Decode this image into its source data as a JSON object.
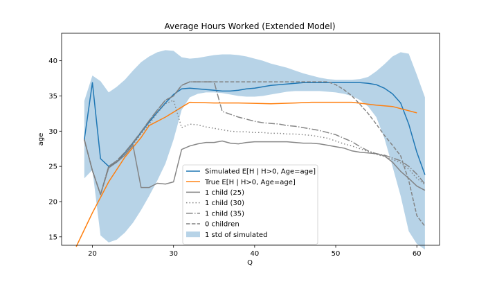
{
  "chart_data": {
    "type": "line",
    "title": "Average Hours Worked (Extended Model)",
    "xlabel": "Q",
    "ylabel": "age",
    "xlim": [
      16.2,
      62.8
    ],
    "ylim": [
      13.8,
      43.9
    ],
    "xticks": [
      20,
      30,
      40,
      50,
      60
    ],
    "yticks": [
      15,
      20,
      25,
      30,
      35,
      40
    ],
    "grid": false,
    "legend_position": "lower-center",
    "band": {
      "name": "1 std of simulated",
      "color": "#1f77b4",
      "opacity": 0.32,
      "x": [
        19,
        20,
        21,
        22,
        23,
        24,
        25,
        26,
        27,
        28,
        29,
        30,
        31,
        32,
        33,
        34,
        35,
        36,
        37,
        38,
        39,
        40,
        41,
        42,
        43,
        44,
        45,
        46,
        47,
        48,
        49,
        50,
        51,
        52,
        53,
        54,
        55,
        56,
        57,
        58,
        59,
        60,
        61
      ],
      "upper": [
        34.3,
        37.9,
        37.1,
        35.5,
        36.3,
        37.3,
        38.6,
        39.8,
        40.6,
        41.2,
        41.5,
        41.4,
        40.5,
        40.3,
        40.4,
        40.6,
        40.8,
        40.9,
        40.9,
        40.8,
        40.6,
        40.3,
        40.0,
        39.6,
        39.3,
        39.0,
        38.6,
        38.2,
        37.9,
        37.6,
        37.4,
        37.3,
        37.3,
        37.3,
        37.4,
        37.7,
        38.5,
        39.5,
        40.6,
        41.2,
        41.0,
        38.0,
        34.8
      ],
      "lower": [
        23.3,
        24.5,
        15.2,
        14.2,
        14.6,
        15.6,
        17.0,
        18.8,
        20.8,
        23.0,
        25.4,
        28.8,
        33.0,
        34.8,
        35.3,
        35.5,
        35.5,
        35.4,
        35.2,
        35.0,
        34.9,
        34.9,
        35.0,
        35.2,
        35.4,
        35.6,
        35.7,
        35.7,
        35.7,
        35.7,
        35.6,
        35.5,
        35.3,
        35.0,
        34.4,
        33.5,
        32.0,
        29.0,
        25.0,
        20.8,
        15.8,
        14.0,
        13.2
      ]
    },
    "series": [
      {
        "name": "Simulated E[H | H>0, Age=age]",
        "color": "#1f77b4",
        "style": "solid",
        "width": 1.5,
        "x": [
          19,
          20,
          21,
          22,
          23,
          24,
          25,
          26,
          27,
          28,
          29,
          30,
          31,
          32,
          33,
          34,
          35,
          36,
          37,
          38,
          39,
          40,
          41,
          42,
          43,
          44,
          45,
          46,
          47,
          48,
          49,
          50,
          51,
          52,
          53,
          54,
          55,
          56,
          57,
          58,
          59,
          60,
          61
        ],
        "y": [
          28.8,
          36.9,
          26.1,
          25.0,
          25.6,
          26.9,
          28.3,
          29.8,
          31.3,
          32.7,
          34.0,
          35.2,
          36.0,
          36.1,
          36.0,
          35.9,
          35.8,
          35.7,
          35.7,
          35.8,
          36.0,
          36.1,
          36.3,
          36.5,
          36.6,
          36.7,
          36.8,
          36.9,
          36.9,
          36.9,
          36.9,
          36.9,
          36.9,
          36.9,
          36.9,
          36.8,
          36.6,
          36.1,
          35.3,
          34.0,
          31.0,
          27.0,
          23.8
        ]
      },
      {
        "name": "True E[H | H>0, Age=age]",
        "color": "#ff7f0e",
        "style": "solid",
        "width": 1.5,
        "x": [
          18,
          20,
          22,
          24,
          26,
          27,
          29,
          31,
          32,
          35,
          38,
          42,
          45,
          47,
          50,
          52,
          55,
          57,
          60
        ],
        "y": [
          13.6,
          18.4,
          22.8,
          26.3,
          29.1,
          30.8,
          32.0,
          33.4,
          34.1,
          34.0,
          34.0,
          33.9,
          34.0,
          34.1,
          34.1,
          34.1,
          33.7,
          33.5,
          32.6
        ]
      },
      {
        "name": "1 child (25)",
        "color": "#808080",
        "style": "solid",
        "width": 1.5,
        "x": [
          19,
          20,
          21,
          22,
          23,
          24,
          25,
          26,
          27,
          28,
          29,
          30,
          31,
          32,
          33,
          34,
          35,
          36,
          37,
          38,
          39,
          40,
          41,
          42,
          43,
          44,
          45,
          46,
          47,
          48,
          49,
          50,
          51,
          52,
          53,
          54,
          55,
          56,
          57,
          58,
          59,
          60,
          61
        ],
        "y": [
          28.8,
          24.4,
          21.0,
          24.8,
          25.6,
          26.6,
          28.0,
          22.0,
          22.0,
          22.6,
          22.5,
          22.8,
          27.4,
          27.9,
          28.2,
          28.4,
          28.4,
          28.6,
          28.3,
          28.2,
          28.4,
          28.5,
          28.5,
          28.5,
          28.5,
          28.5,
          28.4,
          28.3,
          28.3,
          28.2,
          28.0,
          27.8,
          27.6,
          27.2,
          27.0,
          26.9,
          26.8,
          26.5,
          25.6,
          24.3,
          23.3,
          22.2,
          21.6
        ]
      },
      {
        "name": "1 child (30)",
        "color": "#808080",
        "style": "dotted",
        "width": 1.5,
        "x": [
          19,
          20,
          21,
          22,
          23,
          24,
          25,
          26,
          27,
          28,
          29,
          30,
          31,
          32,
          33,
          34,
          35,
          36,
          37,
          38,
          39,
          40,
          41,
          42,
          43,
          44,
          45,
          46,
          47,
          48,
          49,
          50,
          51,
          52,
          53,
          54,
          55,
          56,
          57,
          58,
          59,
          60,
          61
        ],
        "y": [
          28.8,
          24.4,
          21.0,
          24.8,
          25.6,
          26.8,
          28.1,
          29.6,
          31.0,
          32.6,
          33.9,
          34.4,
          30.5,
          31.0,
          30.9,
          30.6,
          30.4,
          30.2,
          30.0,
          29.9,
          29.9,
          29.8,
          29.8,
          29.7,
          29.7,
          29.6,
          29.6,
          29.5,
          29.4,
          29.2,
          29.0,
          28.6,
          28.2,
          27.9,
          27.5,
          27.1,
          26.7,
          26.4,
          26.0,
          25.5,
          24.6,
          23.3,
          22.4
        ]
      },
      {
        "name": "1 child (35)",
        "color": "#808080",
        "style": "dashdot",
        "width": 1.5,
        "x": [
          19,
          20,
          21,
          22,
          23,
          24,
          25,
          26,
          27,
          28,
          29,
          30,
          31,
          32,
          33,
          34,
          35,
          36,
          37,
          38,
          39,
          40,
          41,
          42,
          43,
          44,
          45,
          46,
          47,
          48,
          49,
          50,
          51,
          52,
          53,
          54,
          55,
          56,
          57,
          58,
          59,
          60,
          61
        ],
        "y": [
          28.8,
          24.4,
          21.0,
          25.0,
          25.8,
          27.0,
          28.4,
          29.9,
          31.5,
          33.0,
          34.4,
          35.0,
          36.5,
          37.0,
          37.0,
          37.0,
          37.0,
          32.8,
          32.4,
          32.0,
          31.7,
          31.4,
          31.2,
          31.1,
          31.0,
          30.8,
          30.7,
          30.5,
          30.3,
          30.1,
          29.8,
          29.5,
          29.0,
          28.5,
          27.8,
          27.2,
          26.8,
          26.6,
          26.2,
          25.8,
          25.0,
          23.9,
          22.5
        ]
      },
      {
        "name": "0 children",
        "color": "#808080",
        "style": "dashed",
        "width": 1.5,
        "x": [
          19,
          20,
          21,
          22,
          23,
          24,
          25,
          26,
          27,
          28,
          29,
          30,
          31,
          32,
          33,
          34,
          35,
          36,
          37,
          38,
          39,
          40,
          41,
          42,
          43,
          44,
          45,
          46,
          47,
          48,
          49,
          50,
          51,
          52,
          53,
          54,
          55,
          56,
          57,
          58,
          59,
          60,
          61
        ],
        "y": [
          28.8,
          24.4,
          21.0,
          25.0,
          25.8,
          27.0,
          28.4,
          29.9,
          31.5,
          33.0,
          34.4,
          35.0,
          36.5,
          37.0,
          37.0,
          37.0,
          37.0,
          37.0,
          37.0,
          37.0,
          37.0,
          37.0,
          37.0,
          37.0,
          37.0,
          37.0,
          37.0,
          37.0,
          37.0,
          37.0,
          37.0,
          36.6,
          35.9,
          35.0,
          33.8,
          32.5,
          31.0,
          29.4,
          28.0,
          26.5,
          23.0,
          18.0,
          16.5
        ]
      }
    ],
    "legend_entries": [
      {
        "label": "Simulated E[H | H>0, Age=age]",
        "kind": "line",
        "color": "#1f77b4",
        "style": "solid"
      },
      {
        "label": "True E[H | H>0, Age=age]",
        "kind": "line",
        "color": "#ff7f0e",
        "style": "solid"
      },
      {
        "label": "1 child (25)",
        "kind": "line",
        "color": "#808080",
        "style": "solid"
      },
      {
        "label": "1 child (30)",
        "kind": "line",
        "color": "#808080",
        "style": "dotted"
      },
      {
        "label": "1 child (35)",
        "kind": "line",
        "color": "#808080",
        "style": "dashdot"
      },
      {
        "label": "0 children",
        "kind": "line",
        "color": "#808080",
        "style": "dashed"
      },
      {
        "label": "1 std of simulated",
        "kind": "patch",
        "color": "#1f77b4",
        "style": "fill"
      }
    ]
  }
}
